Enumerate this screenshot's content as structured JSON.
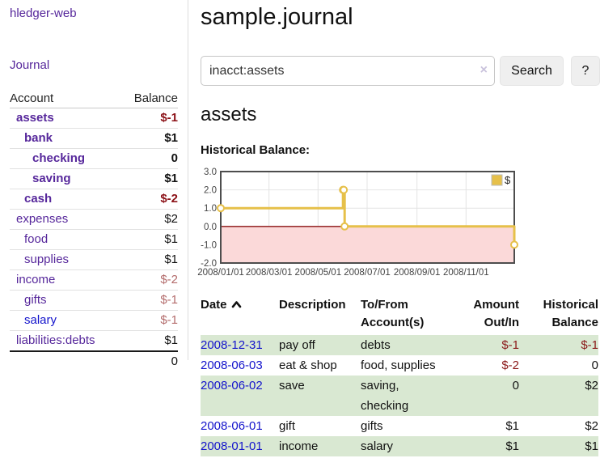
{
  "app": {
    "brand": "hledger-web"
  },
  "theme": {
    "link_purple": "#56279b",
    "link_blue": "#1414cc",
    "negative_strong": "#8b1016",
    "negative_table": "#8b1a1a",
    "negative_muted": "#b36b6b",
    "row_green": "#d9e8d2"
  },
  "sidebar": {
    "journal_label": "Journal",
    "headers": {
      "account": "Account",
      "balance": "Balance"
    },
    "accounts": [
      {
        "name": "assets",
        "balance": "$-1"
      },
      {
        "name": "bank",
        "balance": "$1"
      },
      {
        "name": "checking",
        "balance": "0"
      },
      {
        "name": "saving",
        "balance": "$1"
      },
      {
        "name": "cash",
        "balance": "$-2"
      },
      {
        "name": "expenses",
        "balance": "$2"
      },
      {
        "name": "food",
        "balance": "$1"
      },
      {
        "name": "supplies",
        "balance": "$1"
      },
      {
        "name": "income",
        "balance": "$-2"
      },
      {
        "name": "gifts",
        "balance": "$-1"
      },
      {
        "name": "salary",
        "balance": "$-1"
      },
      {
        "name": "liabilities:debts",
        "balance": "$1"
      }
    ],
    "total": "0"
  },
  "main": {
    "title": "sample.journal",
    "search": {
      "value": "inacct:assets",
      "clear_icon": "×",
      "button_label": "Search",
      "help_label": "?"
    },
    "account_heading": "assets",
    "chart_label": "Historical Balance:"
  },
  "chart_data": {
    "type": "line",
    "step": true,
    "title": "Historical Balance",
    "series": [
      {
        "name": "$",
        "color": "#e6c04a",
        "points": [
          [
            "2008-01-01",
            1
          ],
          [
            "2008-06-01",
            2
          ],
          [
            "2008-06-02",
            2
          ],
          [
            "2008-06-03",
            0
          ],
          [
            "2008-12-31",
            -1
          ]
        ]
      }
    ],
    "x_ticks": [
      {
        "date": "2008-01-01",
        "label": "2008/01/01"
      },
      {
        "date": "2008-03-01",
        "label": "2008/03/01"
      },
      {
        "date": "2008-05-01",
        "label": "2008/05/01"
      },
      {
        "date": "2008-07-01",
        "label": "2008/07/01"
      },
      {
        "date": "2008-09-01",
        "label": "2008/09/01"
      },
      {
        "date": "2008-11-01",
        "label": "2008/11/01"
      }
    ],
    "y_ticks": [
      3,
      2,
      1,
      0,
      -1,
      -2
    ],
    "ylim": [
      -2,
      3
    ],
    "xlim": [
      "2008-01-01",
      "2008-12-31"
    ],
    "legend": {
      "label": "$",
      "position": "top-right"
    },
    "grid": true,
    "colors": {
      "grid": "#e4e4e4",
      "border": "#4d4d4d",
      "negative_region": "#fbd9d9",
      "zero_line": "#8b1111",
      "label": "#444444"
    }
  },
  "transactions": {
    "headers": {
      "date": "Date",
      "description": "Description",
      "accounts": "To/From Account(s)",
      "amount": "Amount Out/In",
      "balance": "Historical Balance"
    },
    "rows": [
      {
        "date": "2008-12-31",
        "description": "pay off",
        "accounts": "debts",
        "amount": "$-1",
        "balance": "$-1"
      },
      {
        "date": "2008-06-03",
        "description": "eat & shop",
        "accounts": "food, supplies",
        "amount": "$-2",
        "balance": "0"
      },
      {
        "date": "2008-06-02",
        "description": "save",
        "accounts": "saving, checking",
        "amount": "0",
        "balance": "$2"
      },
      {
        "date": "2008-06-01",
        "description": "gift",
        "accounts": "gifts",
        "amount": "$1",
        "balance": "$2"
      },
      {
        "date": "2008-01-01",
        "description": "income",
        "accounts": "salary",
        "amount": "$1",
        "balance": "$1"
      }
    ]
  }
}
